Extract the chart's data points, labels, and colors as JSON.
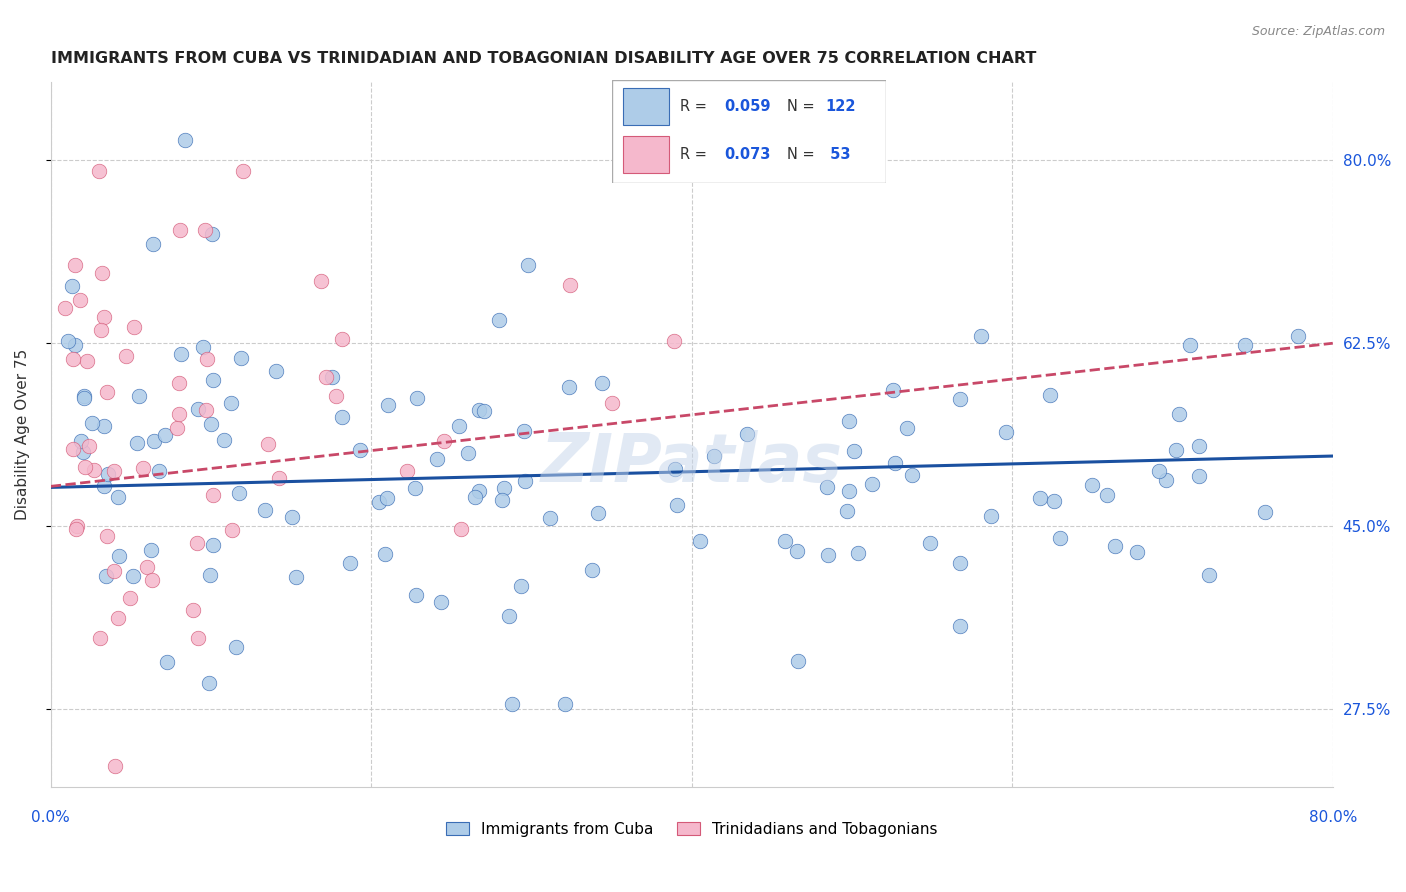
{
  "title": "IMMIGRANTS FROM CUBA VS TRINIDADIAN AND TOBAGONIAN DISABILITY AGE OVER 75 CORRELATION CHART",
  "source": "Source: ZipAtlas.com",
  "ylabel": "Disability Age Over 75",
  "ytick_labels": [
    "80.0%",
    "62.5%",
    "45.0%",
    "27.5%"
  ],
  "ytick_values": [
    0.8,
    0.625,
    0.45,
    0.275
  ],
  "xlim": [
    0.0,
    0.8
  ],
  "ylim": [
    0.2,
    0.875
  ],
  "legend_r_blue": "0.059",
  "legend_n_blue": "122",
  "legend_r_pink": "0.073",
  "legend_n_pink": " 53",
  "legend_label_blue": "Immigrants from Cuba",
  "legend_label_pink": "Trinidadians and Tobagonians",
  "blue_face_color": "#aecce8",
  "blue_edge_color": "#3a6db5",
  "pink_face_color": "#f5b8cc",
  "pink_edge_color": "#d45a78",
  "blue_line_color": "#1a50a0",
  "pink_line_color": "#c84868",
  "axis_color": "#1a56db",
  "title_color": "#222222",
  "grid_color": "#cccccc",
  "watermark": "ZIPatlas",
  "bg_color": "#ffffff",
  "blue_trend_x0": 0.0,
  "blue_trend_y0": 0.487,
  "blue_trend_x1": 0.8,
  "blue_trend_y1": 0.517,
  "pink_trend_x0": 0.0,
  "pink_trend_y0": 0.488,
  "pink_trend_x1": 0.8,
  "pink_trend_y1": 0.625
}
